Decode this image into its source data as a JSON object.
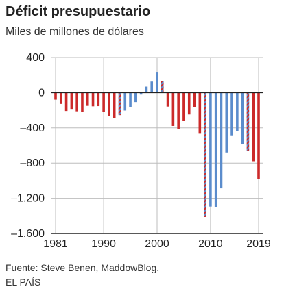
{
  "header": {
    "title": "Déficit presupuestario",
    "subtitle": "Miles de millones de dólares"
  },
  "footer": {
    "source": "Fuente: Steve Benen, MaddowBlog.",
    "credit": "EL PAÍS"
  },
  "colors": {
    "republican": "#cc2a2a",
    "democrat": "#5b8ccc",
    "grid": "#bdbdbd",
    "zero_line": "#222222",
    "text": "#222222"
  },
  "chart_data": {
    "type": "bar",
    "title": "Déficit presupuestario",
    "subtitle": "Miles de millones de dólares",
    "xlabel": "",
    "ylabel": "",
    "ylim": [
      -1600,
      400
    ],
    "yticks": [
      400,
      0,
      -400,
      -800,
      -1200,
      -1600
    ],
    "ytick_labels": [
      "400",
      "0",
      "–400",
      "–800",
      "–1.200",
      "–1.600"
    ],
    "xticks": [
      1981,
      1990,
      2000,
      2010,
      2019
    ],
    "xtick_labels": [
      "1981",
      "1990",
      "2000",
      "2010",
      "2019"
    ],
    "grid": true,
    "years": [
      1981,
      1982,
      1983,
      1984,
      1985,
      1986,
      1987,
      1988,
      1989,
      1990,
      1991,
      1992,
      1993,
      1994,
      1995,
      1996,
      1997,
      1998,
      1999,
      2000,
      2001,
      2002,
      2003,
      2004,
      2005,
      2006,
      2007,
      2008,
      2009,
      2010,
      2011,
      2012,
      2013,
      2014,
      2015,
      2016,
      2017,
      2018,
      2019
    ],
    "values": [
      -79,
      -128,
      -208,
      -185,
      -212,
      -221,
      -150,
      -155,
      -153,
      -221,
      -269,
      -290,
      -255,
      -203,
      -164,
      -107,
      -22,
      69,
      126,
      236,
      128,
      -158,
      -378,
      -413,
      -318,
      -248,
      -161,
      -459,
      -1413,
      -1294,
      -1300,
      -1087,
      -680,
      -485,
      -439,
      -585,
      -665,
      -779,
      -984
    ],
    "party": [
      "R",
      "R",
      "R",
      "R",
      "R",
      "R",
      "R",
      "R",
      "R",
      "R",
      "R",
      "R",
      "T",
      "D",
      "D",
      "D",
      "D",
      "D",
      "D",
      "D",
      "T",
      "R",
      "R",
      "R",
      "R",
      "R",
      "R",
      "R",
      "T",
      "D",
      "D",
      "D",
      "D",
      "D",
      "D",
      "D",
      "T",
      "R",
      "R"
    ]
  }
}
